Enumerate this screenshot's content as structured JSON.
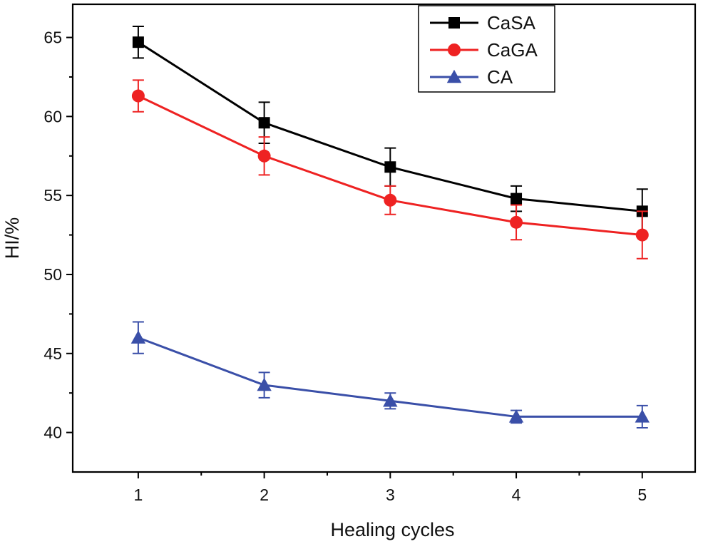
{
  "chart_data": {
    "type": "line",
    "title": "",
    "xlabel": "Healing cycles",
    "ylabel": "HI/%",
    "x": [
      1,
      2,
      3,
      4,
      5
    ],
    "xticks": [
      "1",
      "2",
      "3",
      "4",
      "5"
    ],
    "yticks": [
      "40",
      "45",
      "50",
      "55",
      "60",
      "65"
    ],
    "xlim": [
      0.48,
      5.42
    ],
    "ylim": [
      37.5,
      67.1
    ],
    "grid": false,
    "legend": "top-center",
    "series": [
      {
        "name": "CaSA",
        "color": "#000000",
        "marker": "square",
        "values": [
          64.7,
          59.6,
          56.8,
          54.8,
          54.0
        ],
        "errors": [
          1.0,
          1.3,
          1.2,
          0.8,
          1.4
        ]
      },
      {
        "name": "CaGA",
        "color": "#ee2222",
        "marker": "circle",
        "values": [
          61.3,
          57.5,
          54.7,
          53.3,
          52.5
        ],
        "errors": [
          1.0,
          1.2,
          0.9,
          1.1,
          1.5
        ]
      },
      {
        "name": "CA",
        "color": "#3a4fa8",
        "marker": "triangle",
        "values": [
          46.0,
          43.0,
          42.0,
          41.0,
          41.0
        ],
        "errors": [
          1.0,
          0.8,
          0.5,
          0.4,
          0.7
        ]
      }
    ]
  }
}
